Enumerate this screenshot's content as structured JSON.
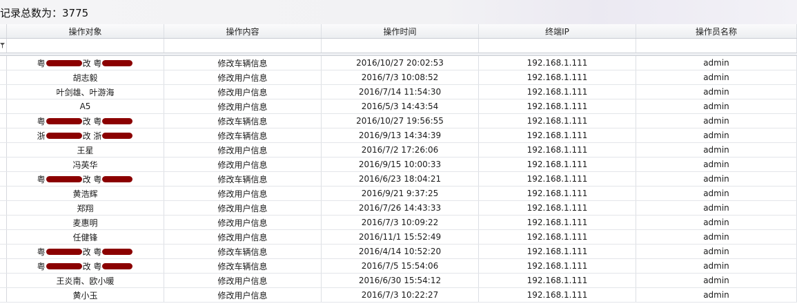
{
  "summary": {
    "total_label": "记录总数为：3775"
  },
  "columns": [
    "操作对象",
    "操作内容",
    "操作时间",
    "终端IP",
    "操作员名称"
  ],
  "icons": {
    "filter": "filter-icon"
  },
  "rows": [
    {
      "target_prefix": "粤",
      "target_mid": "改 粤",
      "target_suffix": "",
      "redacted": true,
      "content": "修改车辆信息",
      "time": "2016/10/27 20:02:53",
      "ip": "192.168.1.111",
      "operator": "admin"
    },
    {
      "target": "胡志毅",
      "content": "修改用户信息",
      "time": "2016/7/3 10:08:52",
      "ip": "192.168.1.111",
      "operator": "admin"
    },
    {
      "target": "叶剑雄、叶游海",
      "content": "修改用户信息",
      "time": "2016/7/14 11:54:30",
      "ip": "192.168.1.111",
      "operator": "admin"
    },
    {
      "target": "A5",
      "content": "修改用户信息",
      "time": "2016/5/3 14:43:54",
      "ip": "192.168.1.111",
      "operator": "admin"
    },
    {
      "target_prefix": "粤",
      "target_mid": "改 粤",
      "target_suffix": "",
      "redacted": true,
      "content": "修改车辆信息",
      "time": "2016/10/27 19:56:55",
      "ip": "192.168.1.111",
      "operator": "admin"
    },
    {
      "target_prefix": "浙",
      "target_mid": "改 浙",
      "target_suffix": "",
      "redacted": true,
      "content": "修改车辆信息",
      "time": "2016/9/13 14:34:39",
      "ip": "192.168.1.111",
      "operator": "admin"
    },
    {
      "target": "王星",
      "content": "修改用户信息",
      "time": "2016/7/2 17:26:06",
      "ip": "192.168.1.111",
      "operator": "admin"
    },
    {
      "target": "冯英华",
      "content": "修改用户信息",
      "time": "2016/9/15 10:00:33",
      "ip": "192.168.1.111",
      "operator": "admin"
    },
    {
      "target_prefix": "粤",
      "target_mid": "改 粤",
      "target_suffix": "",
      "redacted": true,
      "content": "修改车辆信息",
      "time": "2016/6/23 18:04:21",
      "ip": "192.168.1.111",
      "operator": "admin"
    },
    {
      "target": "黄浩辉",
      "content": "修改用户信息",
      "time": "2016/9/21 9:37:25",
      "ip": "192.168.1.111",
      "operator": "admin"
    },
    {
      "target": "郑翔",
      "content": "修改用户信息",
      "time": "2016/7/26 14:43:33",
      "ip": "192.168.1.111",
      "operator": "admin"
    },
    {
      "target": "麦惠明",
      "content": "修改用户信息",
      "time": "2016/7/3 10:09:22",
      "ip": "192.168.1.111",
      "operator": "admin"
    },
    {
      "target": "任健锋",
      "content": "修改用户信息",
      "time": "2016/11/1 15:52:49",
      "ip": "192.168.1.111",
      "operator": "admin"
    },
    {
      "target_prefix": "粤",
      "target_mid": "改 粤",
      "target_suffix": "",
      "redacted": true,
      "content": "修改车辆信息",
      "time": "2016/4/14 10:52:20",
      "ip": "192.168.1.111",
      "operator": "admin"
    },
    {
      "target_prefix": "粤",
      "target_mid": "改 粤",
      "target_suffix": "",
      "redacted": true,
      "content": "修改车辆信息",
      "time": "2016/7/5 15:54:06",
      "ip": "192.168.1.111",
      "operator": "admin"
    },
    {
      "target": "王炎南、欧小暖",
      "content": "修改用户信息",
      "time": "2016/6/30 15:54:12",
      "ip": "192.168.1.111",
      "operator": "admin"
    },
    {
      "target": "黄小玉",
      "content": "修改用户信息",
      "time": "2016/7/3 10:22:27",
      "ip": "192.168.1.111",
      "operator": "admin"
    }
  ]
}
